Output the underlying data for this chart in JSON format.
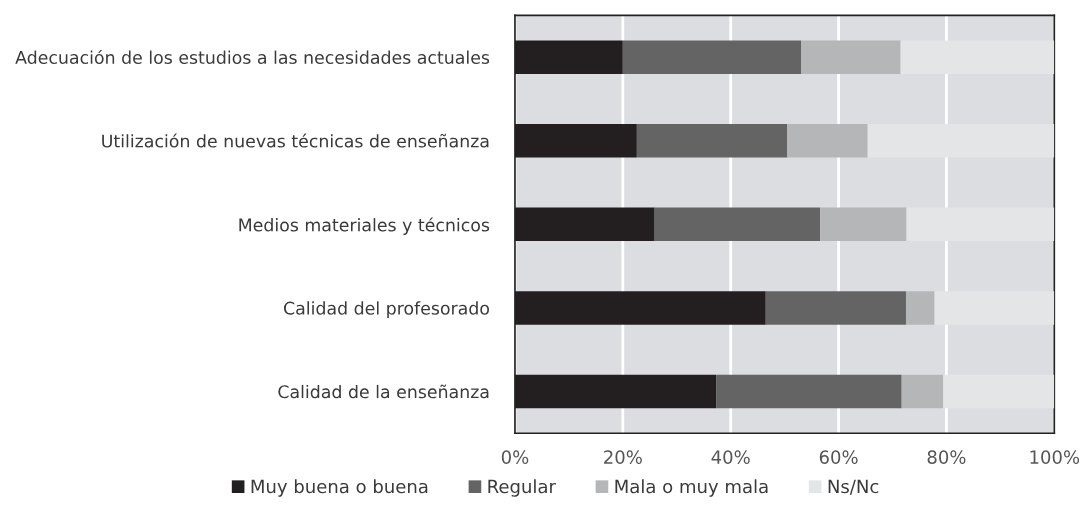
{
  "chart_data": {
    "type": "bar",
    "orientation": "horizontal",
    "stacked": true,
    "categories": [
      "Adecuación de los estudios a las necesidades actuales",
      "Utilización de nuevas técnicas de enseñanza",
      "Medios materiales y técnicos",
      "Calidad del profesorado",
      "Calidad de la enseñanza"
    ],
    "series": [
      {
        "name": "Muy buena o buena",
        "color": "#231f20",
        "values": [
          20.0,
          22.6,
          25.9,
          46.5,
          37.3
        ]
      },
      {
        "name": "Regular",
        "color": "#646464",
        "values": [
          33.1,
          27.9,
          30.7,
          26.0,
          34.4
        ]
      },
      {
        "name": "Mala o muy mala",
        "color": "#b5b6b8",
        "values": [
          18.4,
          14.9,
          16.0,
          5.3,
          7.7
        ]
      },
      {
        "name": "Ns/Nc",
        "color": "#e4e5e7",
        "values": [
          28.5,
          34.6,
          27.4,
          22.2,
          20.6
        ]
      }
    ],
    "xlim": [
      0,
      100
    ],
    "xticks": [
      {
        "value": 0,
        "label": "0%"
      },
      {
        "value": 20,
        "label": "20%"
      },
      {
        "value": 40,
        "label": "40%"
      },
      {
        "value": 60,
        "label": "60%"
      },
      {
        "value": 80,
        "label": "80%"
      },
      {
        "value": 100,
        "label": "100%"
      }
    ],
    "grid": "x",
    "legend": "bottom"
  }
}
